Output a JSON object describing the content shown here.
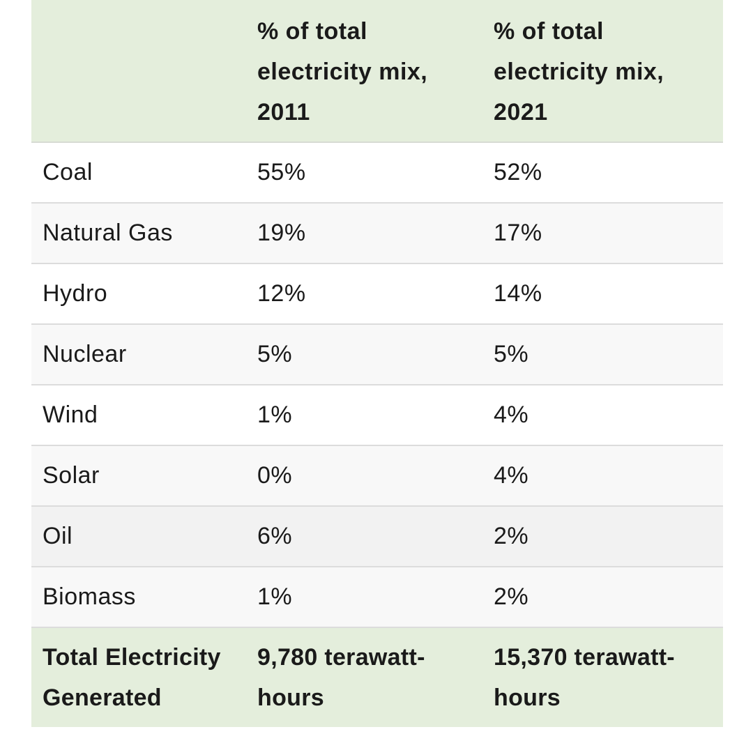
{
  "table": {
    "headers": [
      "",
      "% of total electricity mix, 2011",
      "% of total electricity mix, 2021"
    ],
    "rows": [
      {
        "source": "Coal",
        "y2011": "55%",
        "y2021": "52%"
      },
      {
        "source": "Natural Gas",
        "y2011": "19%",
        "y2021": "17%"
      },
      {
        "source": "Hydro",
        "y2011": "12%",
        "y2021": "14%"
      },
      {
        "source": "Nuclear",
        "y2011": "5%",
        "y2021": "5%"
      },
      {
        "source": "Wind",
        "y2011": "1%",
        "y2021": "4%"
      },
      {
        "source": "Solar",
        "y2011": "0%",
        "y2021": "4%"
      },
      {
        "source": "Oil",
        "y2011": "6%",
        "y2021": "2%"
      },
      {
        "source": "Biomass",
        "y2011": "1%",
        "y2021": "2%"
      }
    ],
    "footer": {
      "label": "Total Electricity Generated",
      "y2011": "9,780 terawatt-hours",
      "y2021": "15,370 terawatt-hours"
    }
  },
  "colors": {
    "header_bg": "#e4eedc",
    "footer_bg": "#e4eedc",
    "row_alt_bg": "#f8f8f8",
    "border": "#dcdcdc"
  }
}
